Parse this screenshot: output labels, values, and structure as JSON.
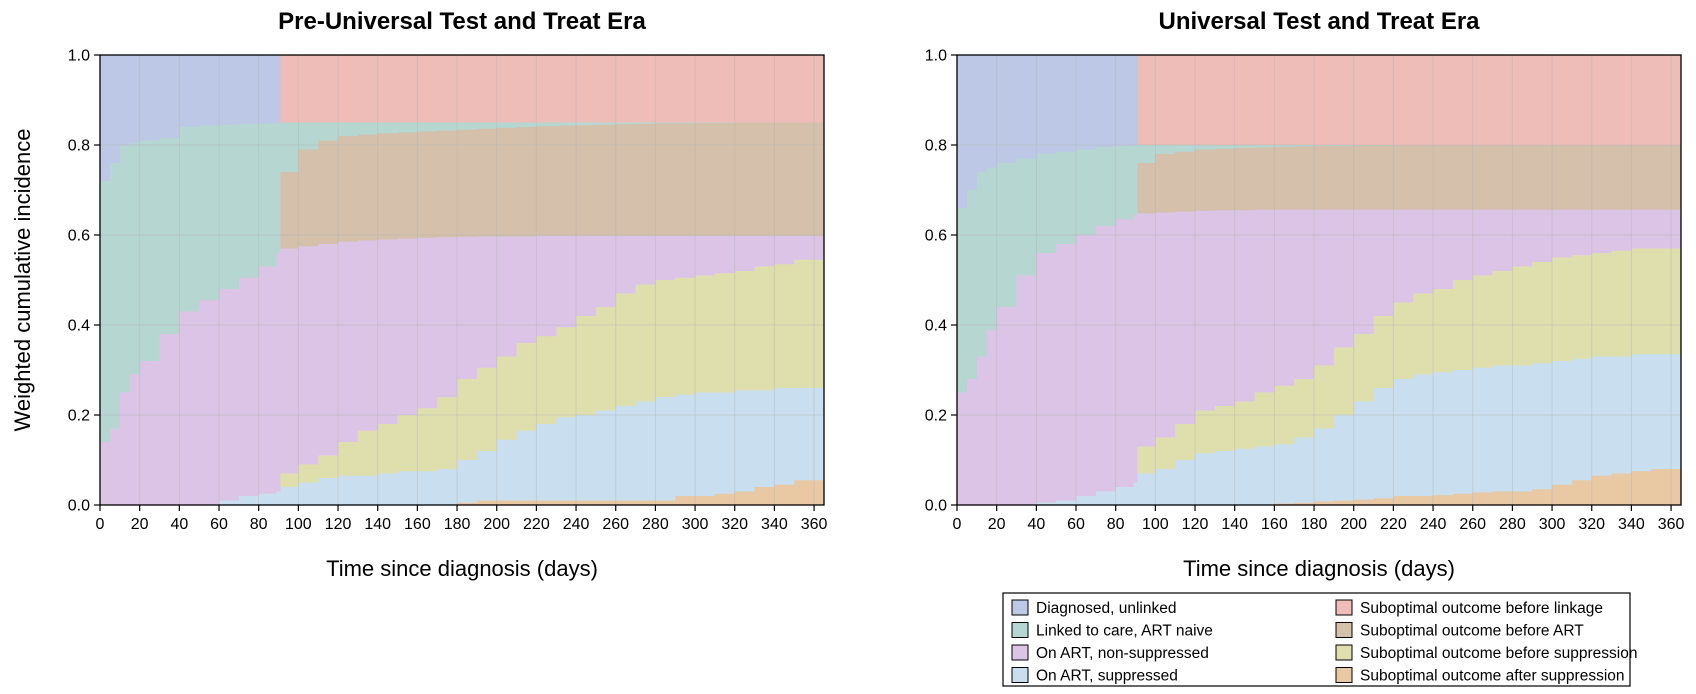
{
  "legend": {
    "items": [
      {
        "label": "Diagnosed, unlinked",
        "color": "#bcc8e5"
      },
      {
        "label": "Suboptimal outcome before linkage",
        "color": "#eebdb7"
      },
      {
        "label": "Linked to care, ART naive",
        "color": "#b6d6d2"
      },
      {
        "label": "Suboptimal outcome before ART",
        "color": "#d4c0ab"
      },
      {
        "label": "On ART, non-suppressed",
        "color": "#dcc4e6"
      },
      {
        "label": "Suboptimal outcome before suppression",
        "color": "#dfdfae"
      },
      {
        "label": "On ART, suppressed",
        "color": "#c9dff0"
      },
      {
        "label": "Suboptimal outcome after suppression",
        "color": "#e8c9a4"
      }
    ]
  },
  "chart_data": [
    {
      "type": "area",
      "stacked": true,
      "title": "Pre-Universal Test and Treat Era",
      "xlabel": "Time since diagnosis (days)",
      "ylabel": "Weighted cumulative incidence",
      "xlim": [
        0,
        365
      ],
      "ylim": [
        0,
        1
      ],
      "xticks": [
        "0",
        "20",
        "40",
        "60",
        "80",
        "100",
        "120",
        "140",
        "160",
        "180",
        "200",
        "220",
        "240",
        "260",
        "280",
        "300",
        "320",
        "340",
        "360"
      ],
      "yticks": [
        "0.0",
        "0.2",
        "0.4",
        "0.6",
        "0.8",
        "1.0"
      ],
      "grid": true,
      "x": [
        0,
        5,
        10,
        15,
        20,
        30,
        40,
        50,
        60,
        70,
        80,
        89,
        91,
        100,
        110,
        120,
        130,
        140,
        150,
        160,
        170,
        180,
        190,
        200,
        210,
        220,
        230,
        240,
        250,
        260,
        270,
        280,
        290,
        300,
        310,
        320,
        330,
        340,
        350,
        365
      ],
      "cumulative_boundaries": [
        {
          "above": "Suboptimal outcome after suppression",
          "y": [
            0,
            0,
            0,
            0,
            0,
            0,
            0,
            0,
            0,
            0,
            0,
            0,
            0,
            0,
            0,
            0,
            0,
            0,
            0,
            0,
            0,
            0.005,
            0.01,
            0.01,
            0.01,
            0.01,
            0.01,
            0.01,
            0.01,
            0.01,
            0.01,
            0.01,
            0.02,
            0.02,
            0.025,
            0.03,
            0.04,
            0.045,
            0.055,
            0.065
          ]
        },
        {
          "above": "On ART, suppressed",
          "y": [
            0,
            0,
            0,
            0,
            0,
            0,
            0,
            0,
            0.01,
            0.02,
            0.025,
            0.03,
            0.04,
            0.05,
            0.06,
            0.065,
            0.065,
            0.07,
            0.075,
            0.075,
            0.08,
            0.1,
            0.12,
            0.145,
            0.165,
            0.18,
            0.195,
            0.2,
            0.21,
            0.22,
            0.23,
            0.24,
            0.245,
            0.25,
            0.25,
            0.255,
            0.255,
            0.26,
            0.26,
            0.26
          ]
        },
        {
          "above": "Suboptimal outcome before suppression",
          "y": [
            0,
            0,
            0,
            0,
            0,
            0,
            0,
            0,
            0.01,
            0.02,
            0.025,
            0.03,
            0.07,
            0.09,
            0.11,
            0.14,
            0.165,
            0.18,
            0.2,
            0.215,
            0.24,
            0.28,
            0.305,
            0.33,
            0.36,
            0.375,
            0.395,
            0.42,
            0.44,
            0.47,
            0.49,
            0.5,
            0.505,
            0.51,
            0.515,
            0.52,
            0.53,
            0.535,
            0.545,
            0.55
          ]
        },
        {
          "above": "On ART, non-suppressed",
          "y": [
            0.14,
            0.17,
            0.25,
            0.29,
            0.32,
            0.38,
            0.43,
            0.455,
            0.48,
            0.505,
            0.53,
            0.56,
            0.57,
            0.575,
            0.58,
            0.585,
            0.588,
            0.59,
            0.592,
            0.594,
            0.595,
            0.596,
            0.597,
            0.597,
            0.597,
            0.598,
            0.598,
            0.598,
            0.598,
            0.598,
            0.598,
            0.598,
            0.598,
            0.598,
            0.598,
            0.598,
            0.598,
            0.598,
            0.598,
            0.598
          ]
        },
        {
          "above": "Suboptimal outcome before ART",
          "y": [
            0.14,
            0.17,
            0.25,
            0.29,
            0.32,
            0.38,
            0.43,
            0.455,
            0.48,
            0.505,
            0.53,
            0.56,
            0.74,
            0.79,
            0.81,
            0.82,
            0.823,
            0.826,
            0.828,
            0.83,
            0.832,
            0.834,
            0.836,
            0.838,
            0.84,
            0.842,
            0.843,
            0.844,
            0.845,
            0.846,
            0.847,
            0.848,
            0.848,
            0.849,
            0.849,
            0.85,
            0.85,
            0.85,
            0.85,
            0.85
          ]
        },
        {
          "above": "Linked to care, ART naive",
          "y": [
            0.72,
            0.76,
            0.8,
            0.805,
            0.81,
            0.815,
            0.84,
            0.843,
            0.845,
            0.847,
            0.848,
            0.849,
            0.85,
            0.85,
            0.85,
            0.85,
            0.85,
            0.85,
            0.85,
            0.85,
            0.85,
            0.85,
            0.85,
            0.85,
            0.85,
            0.85,
            0.85,
            0.85,
            0.85,
            0.85,
            0.85,
            0.85,
            0.85,
            0.85,
            0.85,
            0.85,
            0.85,
            0.85,
            0.85,
            0.85
          ]
        },
        {
          "above": "Diagnosed, unlinked",
          "y": [
            1,
            1,
            1,
            1,
            1,
            1,
            1,
            1,
            1,
            1,
            1,
            1,
            0.85,
            0.85,
            0.85,
            0.85,
            0.85,
            0.85,
            0.85,
            0.85,
            0.85,
            0.85,
            0.85,
            0.85,
            0.85,
            0.85,
            0.85,
            0.85,
            0.85,
            0.85,
            0.85,
            0.85,
            0.85,
            0.85,
            0.85,
            0.85,
            0.85,
            0.85,
            0.85,
            0.85
          ]
        },
        {
          "above": "Suboptimal outcome before linkage",
          "y": [
            1,
            1,
            1,
            1,
            1,
            1,
            1,
            1,
            1,
            1,
            1,
            1,
            1,
            1,
            1,
            1,
            1,
            1,
            1,
            1,
            1,
            1,
            1,
            1,
            1,
            1,
            1,
            1,
            1,
            1,
            1,
            1,
            1,
            1,
            1,
            1,
            1,
            1,
            1,
            1
          ]
        }
      ]
    },
    {
      "type": "area",
      "stacked": true,
      "title": "Universal Test and Treat Era",
      "xlabel": "Time since diagnosis (days)",
      "ylabel": "",
      "xlim": [
        0,
        365
      ],
      "ylim": [
        0,
        1
      ],
      "xticks": [
        "0",
        "20",
        "40",
        "60",
        "80",
        "100",
        "120",
        "140",
        "160",
        "180",
        "200",
        "220",
        "240",
        "260",
        "280",
        "300",
        "320",
        "340",
        "360"
      ],
      "yticks": [
        "0.0",
        "0.2",
        "0.4",
        "0.6",
        "0.8",
        "1.0"
      ],
      "grid": true,
      "x": [
        0,
        5,
        10,
        15,
        20,
        30,
        40,
        50,
        60,
        70,
        80,
        89,
        91,
        100,
        110,
        120,
        130,
        140,
        150,
        160,
        170,
        180,
        190,
        200,
        210,
        220,
        230,
        240,
        250,
        260,
        270,
        280,
        290,
        300,
        310,
        320,
        330,
        340,
        350,
        365
      ],
      "cumulative_boundaries": [
        {
          "above": "Suboptimal outcome after suppression",
          "y": [
            0,
            0,
            0,
            0,
            0,
            0,
            0,
            0,
            0,
            0,
            0,
            0,
            0,
            0,
            0,
            0,
            0,
            0,
            0,
            0.003,
            0.005,
            0.008,
            0.01,
            0.012,
            0.015,
            0.02,
            0.02,
            0.022,
            0.025,
            0.028,
            0.03,
            0.03,
            0.035,
            0.045,
            0.055,
            0.065,
            0.07,
            0.075,
            0.08,
            0.09
          ]
        },
        {
          "above": "On ART, suppressed",
          "y": [
            0,
            0,
            0,
            0,
            0,
            0,
            0.005,
            0.01,
            0.02,
            0.03,
            0.04,
            0.05,
            0.07,
            0.08,
            0.1,
            0.115,
            0.12,
            0.125,
            0.13,
            0.135,
            0.15,
            0.17,
            0.2,
            0.23,
            0.26,
            0.28,
            0.29,
            0.295,
            0.3,
            0.305,
            0.31,
            0.31,
            0.315,
            0.32,
            0.325,
            0.33,
            0.33,
            0.335,
            0.335,
            0.335
          ]
        },
        {
          "above": "Suboptimal outcome before suppression",
          "y": [
            0,
            0,
            0,
            0,
            0,
            0,
            0.005,
            0.01,
            0.02,
            0.03,
            0.04,
            0.05,
            0.13,
            0.15,
            0.18,
            0.21,
            0.22,
            0.23,
            0.25,
            0.265,
            0.28,
            0.31,
            0.35,
            0.38,
            0.42,
            0.45,
            0.47,
            0.48,
            0.5,
            0.51,
            0.52,
            0.53,
            0.54,
            0.55,
            0.555,
            0.56,
            0.565,
            0.57,
            0.57,
            0.575
          ]
        },
        {
          "above": "On ART, non-suppressed",
          "y": [
            0.25,
            0.28,
            0.33,
            0.39,
            0.44,
            0.51,
            0.56,
            0.58,
            0.6,
            0.62,
            0.635,
            0.645,
            0.648,
            0.65,
            0.652,
            0.654,
            0.655,
            0.655,
            0.656,
            0.656,
            0.656,
            0.656,
            0.656,
            0.656,
            0.656,
            0.656,
            0.656,
            0.656,
            0.656,
            0.656,
            0.656,
            0.656,
            0.656,
            0.656,
            0.656,
            0.656,
            0.656,
            0.656,
            0.656,
            0.656
          ]
        },
        {
          "above": "Suboptimal outcome before ART",
          "y": [
            0.25,
            0.28,
            0.33,
            0.39,
            0.44,
            0.51,
            0.56,
            0.58,
            0.6,
            0.62,
            0.635,
            0.645,
            0.76,
            0.78,
            0.785,
            0.79,
            0.792,
            0.794,
            0.795,
            0.796,
            0.797,
            0.798,
            0.798,
            0.799,
            0.799,
            0.8,
            0.8,
            0.8,
            0.8,
            0.8,
            0.8,
            0.8,
            0.8,
            0.8,
            0.8,
            0.8,
            0.8,
            0.8,
            0.8,
            0.8
          ]
        },
        {
          "above": "Linked to care, ART naive",
          "y": [
            0.66,
            0.7,
            0.74,
            0.75,
            0.76,
            0.77,
            0.78,
            0.785,
            0.79,
            0.795,
            0.798,
            0.8,
            0.8,
            0.8,
            0.8,
            0.8,
            0.8,
            0.8,
            0.8,
            0.8,
            0.8,
            0.8,
            0.8,
            0.8,
            0.8,
            0.8,
            0.8,
            0.8,
            0.8,
            0.8,
            0.8,
            0.8,
            0.8,
            0.8,
            0.8,
            0.8,
            0.8,
            0.8,
            0.8,
            0.8
          ]
        },
        {
          "above": "Diagnosed, unlinked",
          "y": [
            1,
            1,
            1,
            1,
            1,
            1,
            1,
            1,
            1,
            1,
            1,
            1,
            0.8,
            0.8,
            0.8,
            0.8,
            0.8,
            0.8,
            0.8,
            0.8,
            0.8,
            0.8,
            0.8,
            0.8,
            0.8,
            0.8,
            0.8,
            0.8,
            0.8,
            0.8,
            0.8,
            0.8,
            0.8,
            0.8,
            0.8,
            0.8,
            0.8,
            0.8,
            0.8,
            0.8
          ]
        },
        {
          "above": "Suboptimal outcome before linkage",
          "y": [
            1,
            1,
            1,
            1,
            1,
            1,
            1,
            1,
            1,
            1,
            1,
            1,
            1,
            1,
            1,
            1,
            1,
            1,
            1,
            1,
            1,
            1,
            1,
            1,
            1,
            1,
            1,
            1,
            1,
            1,
            1,
            1,
            1,
            1,
            1,
            1,
            1,
            1,
            1,
            1
          ]
        }
      ]
    }
  ]
}
